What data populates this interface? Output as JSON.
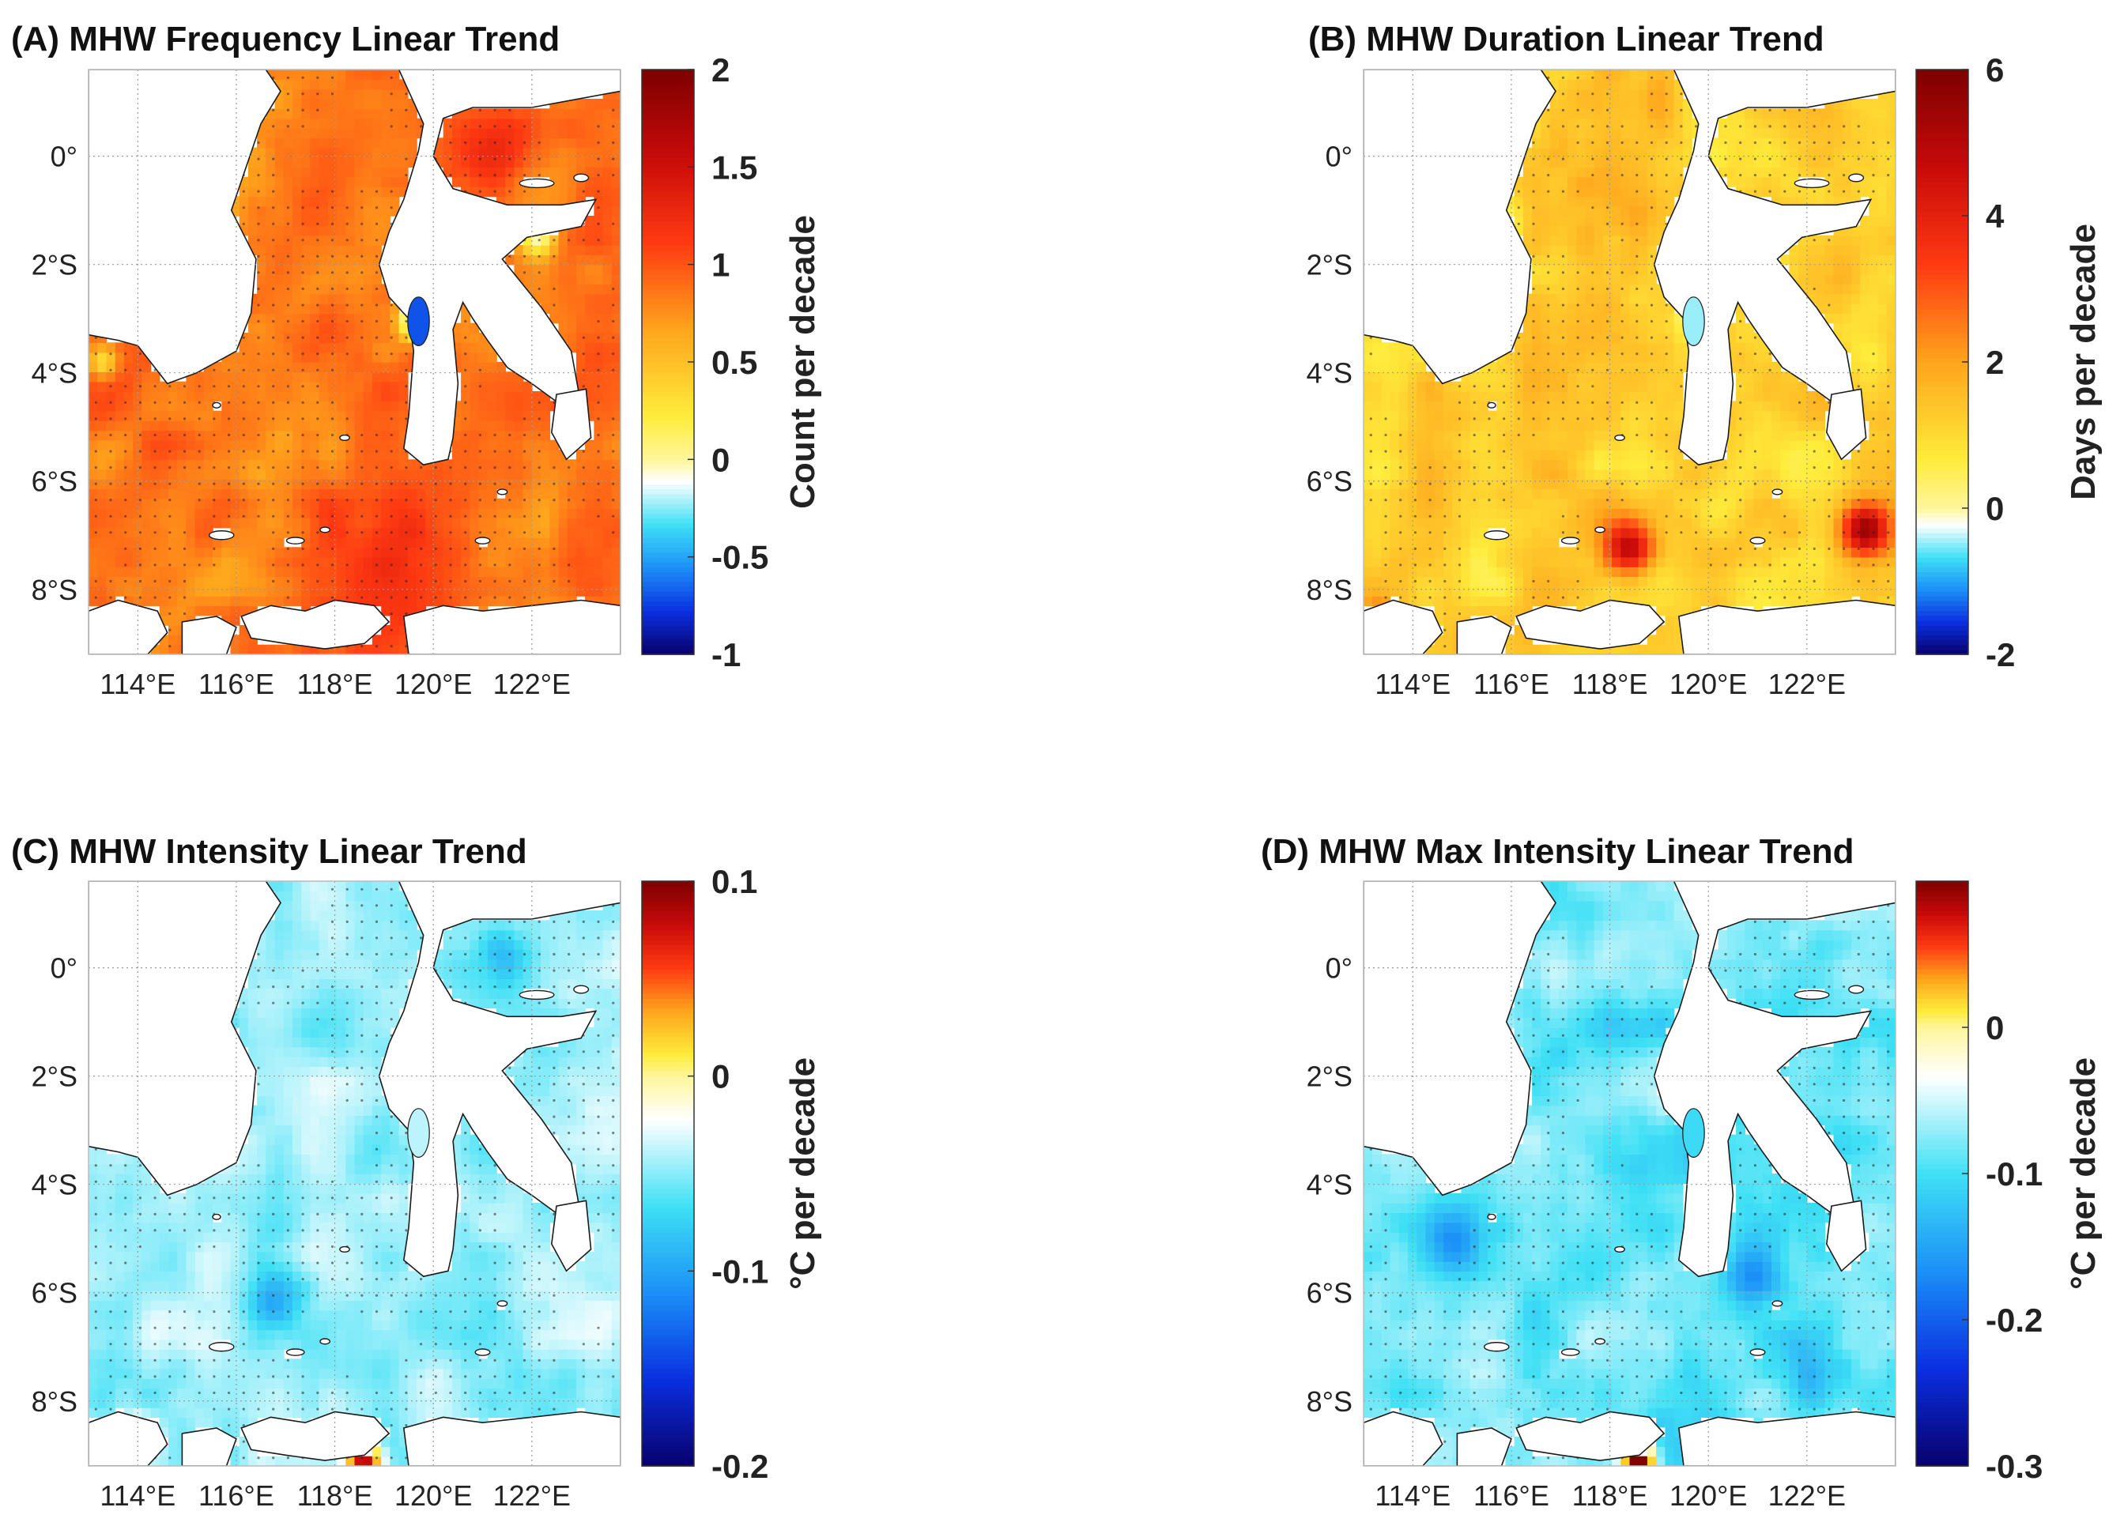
{
  "figure": {
    "colormap": [
      "#08006a",
      "#0a2fe0",
      "#1b8ff7",
      "#3fe0f5",
      "#ffffff",
      "#ffec3b",
      "#ffa51c",
      "#ff3a12",
      "#c80a0a",
      "#7d0000"
    ],
    "colors": {
      "land": "#ffffff",
      "coast": "#1a1a1a",
      "grid": "#9a9a9a",
      "stipple": "#222222"
    }
  },
  "chart_data": [
    {
      "panel": "A",
      "type": "heatmap",
      "title": "(A) MHW Frequency Linear Trend",
      "xlabel": "",
      "ylabel": "",
      "xlim": [
        113.0,
        123.8
      ],
      "ylim": [
        -9.2,
        1.6
      ],
      "xticks": [
        "114°E",
        "116°E",
        "118°E",
        "120°E",
        "122°E"
      ],
      "yticks": [
        "0°",
        "2°S",
        "4°S",
        "6°S",
        "8°S"
      ],
      "colorbar": {
        "label": "Count per decade",
        "range": [
          -1,
          2
        ],
        "zero_at": 0,
        "ticks": [
          "2",
          "1.5",
          "1",
          "0.5",
          "0",
          "-0.5",
          "-1"
        ]
      },
      "field": {
        "base": 0.85,
        "noise": 0.28,
        "hotspots": [
          [
            119.5,
            -7.5,
            0.4,
            1.5
          ],
          [
            121.5,
            0.5,
            0.3,
            1.2
          ]
        ],
        "coldspots": [
          [
            119.7,
            -3.0,
            -1.5,
            0.35
          ],
          [
            113.3,
            -3.8,
            -0.6,
            0.3
          ],
          [
            122.1,
            -1.5,
            -0.8,
            0.35
          ]
        ]
      }
    },
    {
      "panel": "B",
      "type": "heatmap",
      "title": "(B) MHW Duration Linear Trend",
      "xlabel": "",
      "ylabel": "",
      "xlim": [
        113.0,
        123.8
      ],
      "ylim": [
        -9.2,
        1.6
      ],
      "xticks": [
        "114°E",
        "116°E",
        "118°E",
        "120°E",
        "122°E"
      ],
      "yticks": [
        "0°",
        "2°S",
        "4°S",
        "6°S",
        "8°S"
      ],
      "colorbar": {
        "label": "Days per decade",
        "range": [
          -2,
          6
        ],
        "zero_at": 0,
        "ticks": [
          "6",
          "4",
          "2",
          "0",
          "-2"
        ]
      },
      "field": {
        "base": 1.2,
        "noise": 0.9,
        "hotspots": [
          [
            118.4,
            -7.2,
            3.5,
            0.5
          ],
          [
            123.2,
            -6.9,
            4.2,
            0.5
          ],
          [
            113.3,
            -8.7,
            3.5,
            0.4
          ]
        ],
        "coldspots": [
          [
            119.7,
            -3.0,
            -1.8,
            0.35
          ],
          [
            116.0,
            -1.2,
            -0.6,
            0.4
          ],
          [
            117.8,
            -5.6,
            -0.5,
            0.4
          ],
          [
            120.2,
            -6.5,
            -0.6,
            0.4
          ]
        ]
      }
    },
    {
      "panel": "C",
      "type": "heatmap",
      "title": "(C) MHW Intensity Linear Trend",
      "xlabel": "",
      "ylabel": "",
      "xlim": [
        113.0,
        123.8
      ],
      "ylim": [
        -9.2,
        1.6
      ],
      "xticks": [
        "114°E",
        "116°E",
        "118°E",
        "120°E",
        "122°E"
      ],
      "yticks": [
        "0°",
        "2°S",
        "4°S",
        "6°S",
        "8°S"
      ],
      "colorbar": {
        "label": "°C per decade",
        "range": [
          -0.2,
          0.1
        ],
        "zero_at": 0,
        "ticks": [
          "0.1",
          "0",
          "-0.1",
          "-0.2"
        ]
      },
      "field": {
        "base": -0.045,
        "noise": 0.025,
        "hotspots": [
          [
            118.6,
            -9.1,
            0.14,
            0.35
          ],
          [
            114.0,
            -8.6,
            0.08,
            0.3
          ]
        ],
        "coldspots": [
          [
            116.8,
            -6.1,
            -0.05,
            0.6
          ],
          [
            121.5,
            0.2,
            -0.04,
            0.6
          ]
        ]
      }
    },
    {
      "panel": "D",
      "type": "heatmap",
      "title": "(D) MHW Max Intensity Linear Trend",
      "xlabel": "",
      "ylabel": "",
      "xlim": [
        113.0,
        123.8
      ],
      "ylim": [
        -9.2,
        1.6
      ],
      "xticks": [
        "114°E",
        "116°E",
        "118°E",
        "120°E",
        "122°E"
      ],
      "yticks": [
        "0°",
        "2°S",
        "4°S",
        "6°S",
        "8°S"
      ],
      "colorbar": {
        "label": "°C per decade",
        "range": [
          -0.3,
          0.1
        ],
        "zero_at": 0,
        "ticks": [
          "0",
          "-0.1",
          "-0.2",
          "-0.3"
        ]
      },
      "field": {
        "base": -0.085,
        "noise": 0.045,
        "hotspots": [
          [
            118.6,
            -9.1,
            0.22,
            0.35
          ],
          [
            113.5,
            -8.8,
            0.2,
            0.35
          ]
        ],
        "coldspots": [
          [
            114.8,
            -5.0,
            -0.09,
            0.7
          ],
          [
            120.8,
            -5.6,
            -0.07,
            0.6
          ],
          [
            122.0,
            -7.6,
            -0.06,
            0.6
          ]
        ]
      }
    }
  ]
}
